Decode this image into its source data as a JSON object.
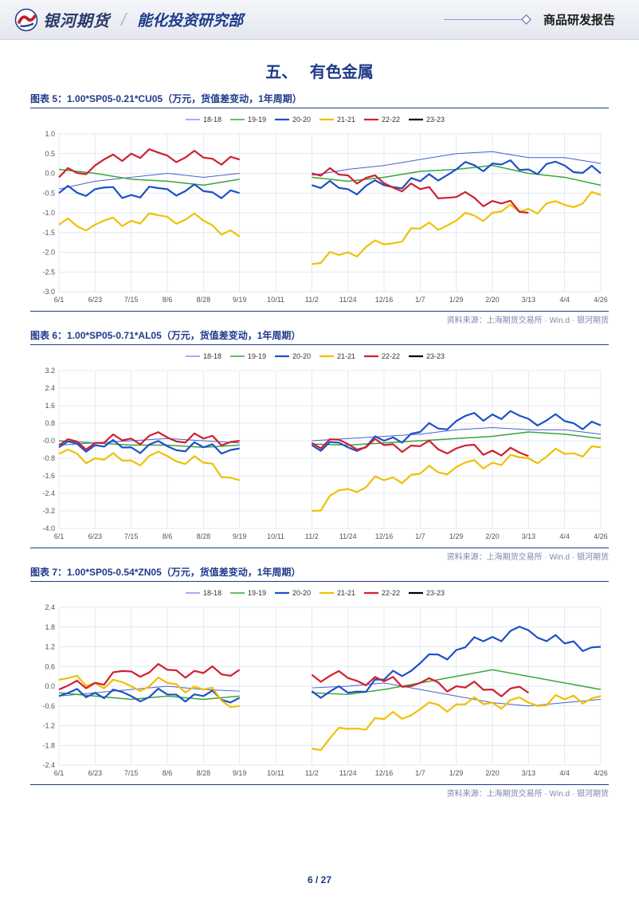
{
  "header": {
    "logo_text": "银河期货",
    "department": "能化投资研究部",
    "report_type": "商品研发报告"
  },
  "section_title": "五、　 有色金属",
  "footer": {
    "page": "6",
    "sep": " / ",
    "total": "27"
  },
  "charts": [
    {
      "caption": "图表 5：1.00*SP05-0.21*CU05（万元，货值差变动，1年周期）",
      "source": "资料来源：上海期货交易所 · Win.d · 银河期货",
      "type": "line",
      "ylim": [
        -3.0,
        1.0
      ],
      "ytick_step": 0.5,
      "xlabels": [
        "6/1",
        "6/23",
        "7/15",
        "8/6",
        "8/28",
        "9/19",
        "10/11",
        "11/2",
        "11/24",
        "12/16",
        "1/7",
        "1/29",
        "2/20",
        "3/13",
        "4/4",
        "4/26"
      ],
      "legend": [
        {
          "label": "18-18",
          "color": "#4a5fd0",
          "width": 1
        },
        {
          "label": "19-19",
          "color": "#3ba53b",
          "width": 1.5
        },
        {
          "label": "20-20",
          "color": "#1e50c8",
          "width": 2.2
        },
        {
          "label": "21-21",
          "color": "#f0c000",
          "width": 2.2
        },
        {
          "label": "22-22",
          "color": "#d02030",
          "width": 2.2
        },
        {
          "label": "23-23",
          "color": "#000000",
          "width": 2.2
        }
      ],
      "grid_color": "#d8e0f0",
      "background_color": "#ffffff",
      "label_fontsize": 9,
      "series": {
        "18-18": [
          -0.4,
          -0.2,
          -0.1,
          0.0,
          -0.1,
          0.0,
          null,
          -0.05,
          0.1,
          0.2,
          0.35,
          0.5,
          0.55,
          0.4,
          0.4,
          0.25
        ],
        "19-19": [
          0.1,
          0.0,
          -0.15,
          -0.2,
          -0.3,
          -0.15,
          null,
          -0.1,
          -0.2,
          -0.1,
          0.05,
          0.1,
          0.2,
          0.0,
          -0.1,
          -0.3
        ],
        "20-20": [
          -0.5,
          -0.4,
          -0.55,
          -0.4,
          -0.45,
          -0.5,
          null,
          -0.3,
          -0.4,
          -0.3,
          -0.2,
          0.1,
          0.25,
          0.1,
          0.2,
          0.0
        ],
        "21-21": [
          -1.3,
          -1.3,
          -1.2,
          -1.1,
          -1.2,
          -1.6,
          null,
          -2.3,
          -2.0,
          -1.8,
          -1.4,
          -1.2,
          -1.0,
          -0.9,
          -0.8,
          -0.55
        ],
        "22-22": [
          -0.1,
          0.2,
          0.5,
          0.45,
          0.4,
          0.35,
          null,
          0.0,
          -0.05,
          -0.25,
          -0.4,
          -0.6,
          -0.7,
          -1.0,
          null,
          null
        ],
        "23-23": [
          null,
          null,
          null,
          null,
          null,
          null,
          null,
          null,
          null,
          null,
          null,
          null,
          null,
          null,
          null,
          null
        ]
      }
    },
    {
      "caption": "图表 6：1.00*SP05-0.71*AL05（万元，货值差变动，1年周期）",
      "source": "资料来源：上海期货交易所 · Win.d · 银河期货",
      "type": "line",
      "ylim": [
        -4.0,
        3.2
      ],
      "ytick_step": 0.8,
      "xlabels": [
        "6/1",
        "6/23",
        "7/15",
        "8/6",
        "8/28",
        "9/19",
        "10/11",
        "11/2",
        "11/24",
        "12/16",
        "1/7",
        "1/29",
        "2/20",
        "3/13",
        "4/4",
        "4/26"
      ],
      "legend": [
        {
          "label": "18-18",
          "color": "#4a5fd0",
          "width": 1
        },
        {
          "label": "19-19",
          "color": "#3ba53b",
          "width": 1.5
        },
        {
          "label": "20-20",
          "color": "#1e50c8",
          "width": 2.2
        },
        {
          "label": "21-21",
          "color": "#f0c000",
          "width": 2.2
        },
        {
          "label": "22-22",
          "color": "#d02030",
          "width": 2.2
        },
        {
          "label": "23-23",
          "color": "#000000",
          "width": 2.2
        }
      ],
      "grid_color": "#d8e0f0",
      "background_color": "#ffffff",
      "label_fontsize": 9,
      "series": {
        "18-18": [
          -0.2,
          -0.1,
          0.0,
          0.1,
          0.0,
          -0.1,
          null,
          0.0,
          0.1,
          0.2,
          0.3,
          0.5,
          0.6,
          0.5,
          0.5,
          0.3
        ],
        "19-19": [
          0.0,
          -0.1,
          -0.2,
          -0.2,
          -0.3,
          -0.2,
          null,
          -0.15,
          -0.2,
          -0.1,
          0.0,
          0.1,
          0.2,
          0.4,
          0.3,
          0.1
        ],
        "20-20": [
          -0.3,
          -0.2,
          -0.3,
          -0.25,
          -0.3,
          -0.35,
          null,
          -0.2,
          -0.3,
          0.0,
          0.4,
          0.9,
          1.2,
          1.0,
          0.9,
          0.7
        ],
        "21-21": [
          -0.6,
          -0.8,
          -0.9,
          -0.7,
          -1.0,
          -1.8,
          null,
          -3.2,
          -2.2,
          -1.8,
          -1.5,
          -1.2,
          -1.0,
          -0.8,
          -0.6,
          -0.3
        ],
        "22-22": [
          -0.2,
          -0.1,
          0.1,
          0.15,
          0.1,
          0.0,
          null,
          -0.1,
          -0.15,
          -0.2,
          -0.25,
          -0.35,
          -0.45,
          -0.7,
          null,
          null
        ],
        "23-23": [
          null,
          null,
          null,
          null,
          null,
          null,
          null,
          null,
          null,
          null,
          null,
          null,
          null,
          null,
          null,
          null
        ]
      }
    },
    {
      "caption": "图表 7：1.00*SP05-0.54*ZN05（万元，货值差变动，1年周期）",
      "source": "资料来源：上海期货交易所 · Win.d · 银河期货",
      "type": "line",
      "ylim": [
        -2.4,
        2.4
      ],
      "ytick_step": 0.6,
      "xlabels": [
        "6/1",
        "6/23",
        "7/15",
        "8/6",
        "8/28",
        "9/19",
        "10/11",
        "11/2",
        "11/24",
        "12/16",
        "1/7",
        "1/29",
        "2/20",
        "3/13",
        "4/4",
        "4/26"
      ],
      "legend": [
        {
          "label": "18-18",
          "color": "#4a5fd0",
          "width": 1
        },
        {
          "label": "19-19",
          "color": "#3ba53b",
          "width": 1.5
        },
        {
          "label": "20-20",
          "color": "#1e50c8",
          "width": 2.2
        },
        {
          "label": "21-21",
          "color": "#f0c000",
          "width": 2.2
        },
        {
          "label": "22-22",
          "color": "#d02030",
          "width": 2.2
        },
        {
          "label": "23-23",
          "color": "#000000",
          "width": 2.2
        }
      ],
      "grid_color": "#d8e0f0",
      "background_color": "#ffffff",
      "label_fontsize": 9,
      "series": {
        "18-18": [
          -0.3,
          -0.2,
          -0.1,
          0.0,
          -0.1,
          -0.15,
          null,
          -0.05,
          0.0,
          0.1,
          -0.1,
          -0.3,
          -0.5,
          -0.6,
          -0.5,
          -0.4
        ],
        "19-19": [
          -0.2,
          -0.3,
          -0.4,
          -0.3,
          -0.4,
          -0.3,
          null,
          -0.2,
          -0.25,
          -0.1,
          0.1,
          0.3,
          0.5,
          0.3,
          0.1,
          -0.1
        ],
        "20-20": [
          -0.3,
          -0.2,
          -0.3,
          -0.25,
          -0.3,
          -0.35,
          null,
          -0.15,
          -0.2,
          0.2,
          0.7,
          1.1,
          1.5,
          1.7,
          1.3,
          1.2
        ],
        "21-21": [
          0.2,
          0.1,
          0.0,
          0.1,
          -0.1,
          -0.6,
          null,
          -1.9,
          -1.3,
          -1.0,
          -0.7,
          -0.55,
          -0.5,
          -0.5,
          -0.4,
          -0.3
        ],
        "22-22": [
          -0.1,
          0.1,
          0.45,
          0.5,
          0.4,
          0.5,
          null,
          0.35,
          0.25,
          0.15,
          0.1,
          0.0,
          -0.1,
          -0.2,
          null,
          null
        ],
        "23-23": [
          null,
          null,
          null,
          null,
          null,
          null,
          null,
          null,
          null,
          null,
          null,
          null,
          null,
          null,
          null,
          null
        ]
      }
    }
  ]
}
